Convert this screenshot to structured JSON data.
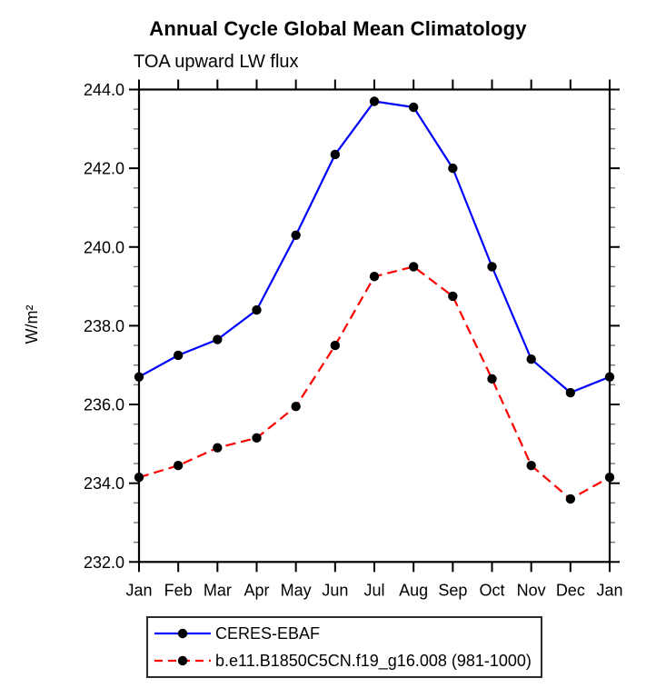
{
  "chart_data": {
    "type": "line",
    "title": "Annual Cycle Global Mean Climatology",
    "subtitle": "TOA upward LW flux",
    "ylabel": "W/m²",
    "xlabel": "",
    "categories": [
      "Jan",
      "Feb",
      "Mar",
      "Apr",
      "May",
      "Jun",
      "Jul",
      "Aug",
      "Sep",
      "Oct",
      "Nov",
      "Dec",
      "Jan"
    ],
    "series": [
      {
        "name": "CERES-EBAF",
        "color": "#0000ff",
        "line_style": "solid",
        "marker": "black-dot",
        "marker_color": "#000000",
        "values": [
          236.7,
          237.25,
          237.65,
          238.4,
          240.3,
          242.35,
          243.7,
          243.55,
          242.0,
          239.5,
          237.15,
          236.3,
          236.7
        ]
      },
      {
        "name": "b.e11.B1850C5CN.f19_g16.008 (981-1000)",
        "color": "#ff0000",
        "line_style": "dashed",
        "marker": "black-dot",
        "marker_color": "#000000",
        "values": [
          234.15,
          234.45,
          234.9,
          235.15,
          235.95,
          237.5,
          239.25,
          239.5,
          238.75,
          236.65,
          234.45,
          233.6,
          234.15
        ]
      }
    ],
    "ylim": [
      232.0,
      244.0
    ],
    "ytick_step": 2.0,
    "yminor_step": 0.5,
    "ytick_labels": [
      "232.0",
      "234.0",
      "236.0",
      "238.0",
      "240.0",
      "242.0",
      "244.0"
    ],
    "grid": false,
    "tick_direction": "out",
    "legend_position": "bottom-left-box"
  }
}
